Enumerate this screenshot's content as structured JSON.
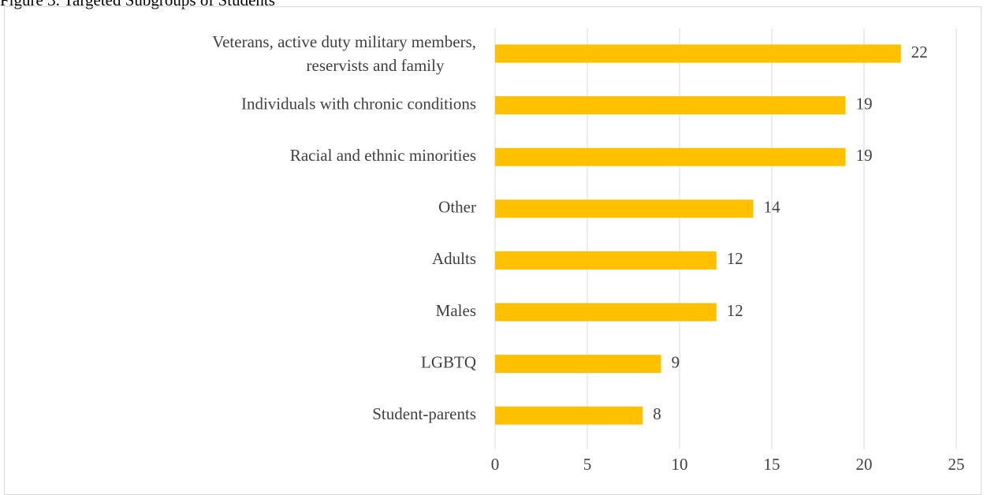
{
  "figure_caption": "Figure 3. Targeted Subgroups of Students",
  "chart_data": {
    "type": "bar",
    "orientation": "horizontal",
    "title": "",
    "xlabel": "",
    "ylabel": "",
    "categories": [
      "Veterans, active duty military members, reservists and family",
      "Individuals with chronic conditions",
      "Racial and ethnic minorities",
      "Other",
      "Adults",
      "Males",
      "LGBTQ",
      "Student-parents"
    ],
    "values": [
      22,
      19,
      19,
      14,
      12,
      12,
      9,
      8
    ],
    "xlim": [
      0,
      25
    ],
    "xticks": [
      0,
      5,
      10,
      15,
      20,
      25
    ],
    "grid": "vertical",
    "data_labels": true,
    "legend": "none",
    "bar_color": "#FFC000",
    "gridline_color": "#d9d9d9",
    "label_color": "#404040"
  }
}
